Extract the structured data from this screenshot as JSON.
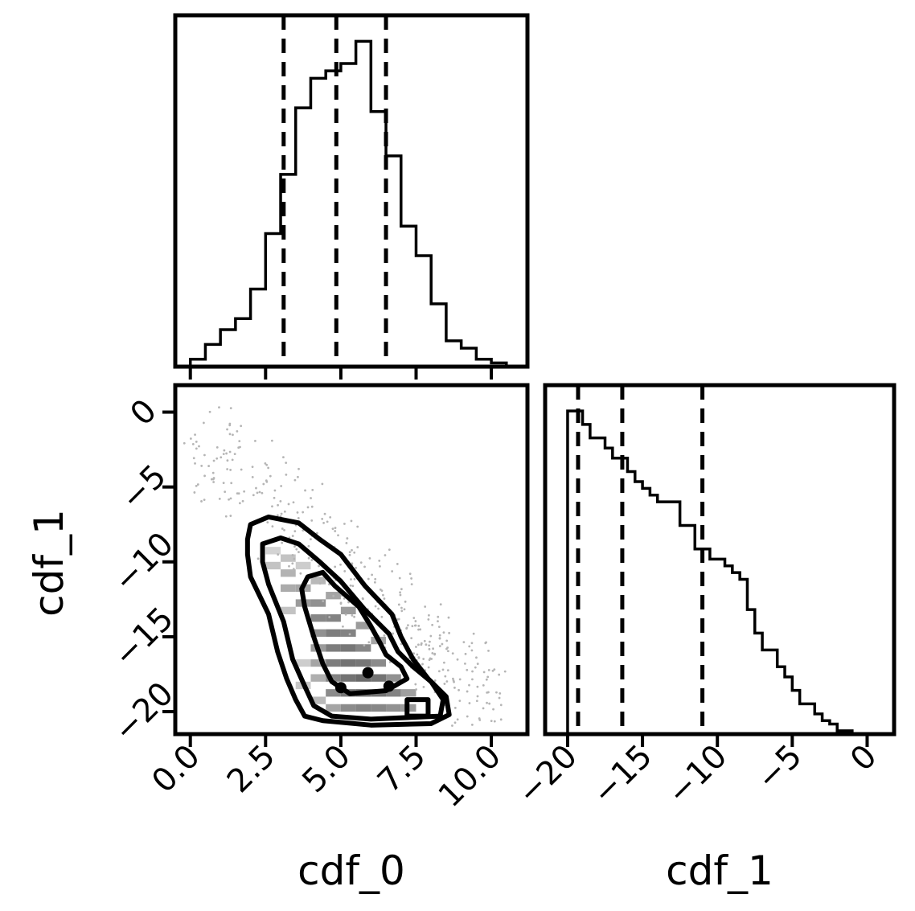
{
  "chart_data": {
    "type": "corner",
    "parameters": [
      "cdf_0",
      "cdf_1"
    ],
    "axes": {
      "cdf_0": {
        "label": "cdf_0",
        "range": [
          -0.5,
          11.2
        ],
        "ticks": [
          0.0,
          2.5,
          5.0,
          7.5,
          10.0
        ],
        "tick_labels": [
          "0.0",
          "2.5",
          "5.0",
          "7.5",
          "10.0"
        ]
      },
      "cdf_1": {
        "label": "cdf_1",
        "range": [
          -21.5,
          1.8
        ],
        "ticks": [
          -20,
          -15,
          -10,
          -5,
          0
        ],
        "tick_labels": [
          "−20",
          "−15",
          "−10",
          "−5",
          "0"
        ]
      }
    },
    "histograms": [
      {
        "parameter": "cdf_0",
        "quantiles": [
          3.1,
          4.85,
          6.5
        ],
        "bins": [
          0.0,
          0.5,
          1.0,
          1.5,
          2.0,
          2.5,
          3.0,
          3.5,
          4.0,
          4.5,
          5.0,
          5.5,
          6.0,
          6.5,
          7.0,
          7.5,
          8.0,
          8.5,
          9.0,
          9.5,
          10.0,
          10.5
        ],
        "counts": [
          2,
          6,
          10,
          13,
          21,
          36,
          52,
          70,
          78,
          80,
          82,
          88,
          69,
          57,
          38,
          30,
          17,
          7,
          5,
          2,
          1
        ]
      },
      {
        "parameter": "cdf_1",
        "quantiles": [
          -19.3,
          -16.35,
          -11.0
        ],
        "bins": [
          -20.0,
          -19.5,
          -19.0,
          -18.5,
          -18.0,
          -17.5,
          -17.0,
          -16.5,
          -16.0,
          -15.5,
          -15.0,
          -14.5,
          -14.0,
          -13.5,
          -13.0,
          -12.5,
          -12.0,
          -11.5,
          -11.0,
          -10.5,
          -10.0,
          -9.5,
          -9.0,
          -8.5,
          -8.0,
          -7.5,
          -7.0,
          -6.5,
          -6.0,
          -5.5,
          -5.0,
          -4.5,
          -4.0,
          -3.5,
          -3.0,
          -2.5,
          -2.0,
          -1.5,
          -1.0
        ],
        "counts": [
          96,
          96,
          92,
          88,
          88,
          85,
          82,
          82,
          78,
          75,
          73,
          71,
          69,
          69,
          69,
          62,
          62,
          55,
          55,
          52,
          52,
          50,
          48,
          46,
          37,
          30,
          25,
          25,
          20,
          17,
          13,
          9,
          9,
          6,
          4,
          3,
          1,
          1
        ]
      }
    ],
    "joint": {
      "x": "cdf_0",
      "y": "cdf_1",
      "contour_levels": 4,
      "outer_contour": [
        [
          2.0,
          -7.5
        ],
        [
          2.6,
          -7.0
        ],
        [
          3.6,
          -7.4
        ],
        [
          4.3,
          -8.5
        ],
        [
          5.0,
          -9.5
        ],
        [
          5.8,
          -11.6
        ],
        [
          6.7,
          -13.5
        ],
        [
          7.0,
          -15.0
        ],
        [
          7.4,
          -16.5
        ],
        [
          7.9,
          -17.8
        ],
        [
          8.5,
          -19.0
        ],
        [
          8.6,
          -20.2
        ],
        [
          8.0,
          -20.8
        ],
        [
          6.0,
          -20.9
        ],
        [
          4.4,
          -20.6
        ],
        [
          3.8,
          -20.3
        ],
        [
          3.5,
          -19.2
        ],
        [
          3.2,
          -17.8
        ],
        [
          2.9,
          -16.0
        ],
        [
          2.6,
          -13.5
        ],
        [
          2.0,
          -11.0
        ],
        [
          1.9,
          -9.5
        ],
        [
          1.9,
          -8.5
        ]
      ],
      "mid_contour": [
        [
          2.4,
          -8.8
        ],
        [
          3.0,
          -8.4
        ],
        [
          3.6,
          -8.8
        ],
        [
          4.3,
          -10.0
        ],
        [
          5.0,
          -11.3
        ],
        [
          5.8,
          -13.2
        ],
        [
          6.6,
          -14.8
        ],
        [
          6.9,
          -16.0
        ],
        [
          7.4,
          -17.0
        ],
        [
          8.0,
          -18.0
        ],
        [
          8.4,
          -19.2
        ],
        [
          8.3,
          -20.3
        ],
        [
          6.0,
          -20.5
        ],
        [
          4.7,
          -20.3
        ],
        [
          4.1,
          -19.6
        ],
        [
          3.8,
          -18.3
        ],
        [
          3.4,
          -16.5
        ],
        [
          3.1,
          -14.0
        ],
        [
          2.6,
          -11.5
        ],
        [
          2.4,
          -10.0
        ]
      ],
      "inner_contour": [
        [
          3.9,
          -11.0
        ],
        [
          4.4,
          -10.7
        ],
        [
          4.8,
          -11.6
        ],
        [
          5.6,
          -13.0
        ],
        [
          6.0,
          -14.3
        ],
        [
          6.3,
          -15.4
        ],
        [
          6.5,
          -16.2
        ],
        [
          7.0,
          -17.0
        ],
        [
          7.2,
          -17.8
        ],
        [
          6.5,
          -18.6
        ],
        [
          5.3,
          -18.8
        ],
        [
          4.7,
          -18.0
        ],
        [
          4.4,
          -16.8
        ],
        [
          4.1,
          -15.0
        ],
        [
          3.8,
          -13.0
        ],
        [
          3.7,
          -11.8
        ]
      ],
      "core_contour": [
        [
          7.2,
          -19.2
        ],
        [
          7.9,
          -19.2
        ],
        [
          7.9,
          -20.3
        ],
        [
          7.2,
          -20.3
        ]
      ],
      "density_peaks": [
        [
          5.0,
          -18.4
        ],
        [
          5.9,
          -17.4
        ],
        [
          6.6,
          -18.3
        ]
      ],
      "density_cells": [
        [
          2.75,
          -9.25,
          0.22
        ],
        [
          3.25,
          -9.75,
          0.3
        ],
        [
          2.75,
          -10.25,
          0.3
        ],
        [
          3.25,
          -10.75,
          0.38
        ],
        [
          3.75,
          -10.25,
          0.25
        ],
        [
          3.25,
          -11.75,
          0.42
        ],
        [
          3.75,
          -11.75,
          0.45
        ],
        [
          4.25,
          -11.25,
          0.35
        ],
        [
          3.75,
          -12.75,
          0.5
        ],
        [
          4.25,
          -12.75,
          0.55
        ],
        [
          4.75,
          -12.25,
          0.45
        ],
        [
          4.25,
          -13.75,
          0.6
        ],
        [
          4.75,
          -13.75,
          0.62
        ],
        [
          5.25,
          -13.25,
          0.5
        ],
        [
          4.25,
          -14.75,
          0.55
        ],
        [
          4.75,
          -14.75,
          0.65
        ],
        [
          5.25,
          -14.75,
          0.62
        ],
        [
          5.75,
          -14.25,
          0.5
        ],
        [
          4.25,
          -15.75,
          0.5
        ],
        [
          4.75,
          -15.75,
          0.65
        ],
        [
          5.25,
          -15.75,
          0.68
        ],
        [
          5.75,
          -15.75,
          0.6
        ],
        [
          6.25,
          -15.25,
          0.45
        ],
        [
          4.25,
          -16.75,
          0.45
        ],
        [
          4.75,
          -16.75,
          0.65
        ],
        [
          5.25,
          -16.75,
          0.7
        ],
        [
          5.75,
          -16.75,
          0.68
        ],
        [
          6.25,
          -16.75,
          0.58
        ],
        [
          4.25,
          -17.75,
          0.4
        ],
        [
          4.75,
          -17.75,
          0.62
        ],
        [
          5.25,
          -17.75,
          0.7
        ],
        [
          5.75,
          -17.75,
          0.75
        ],
        [
          6.25,
          -17.75,
          0.7
        ],
        [
          6.75,
          -17.75,
          0.55
        ],
        [
          4.75,
          -18.75,
          0.58
        ],
        [
          5.25,
          -18.75,
          0.68
        ],
        [
          5.75,
          -18.75,
          0.72
        ],
        [
          6.25,
          -18.75,
          0.7
        ],
        [
          6.75,
          -18.75,
          0.62
        ],
        [
          7.25,
          -18.75,
          0.48
        ],
        [
          4.75,
          -19.75,
          0.45
        ],
        [
          5.25,
          -19.75,
          0.58
        ],
        [
          5.75,
          -19.75,
          0.62
        ],
        [
          6.25,
          -19.75,
          0.6
        ],
        [
          6.75,
          -19.75,
          0.55
        ],
        [
          7.25,
          -19.75,
          0.5
        ],
        [
          3.75,
          -16.75,
          0.25
        ],
        [
          3.75,
          -18.25,
          0.28
        ],
        [
          4.25,
          -19.25,
          0.35
        ],
        [
          3.25,
          -13.25,
          0.3
        ]
      ]
    }
  }
}
